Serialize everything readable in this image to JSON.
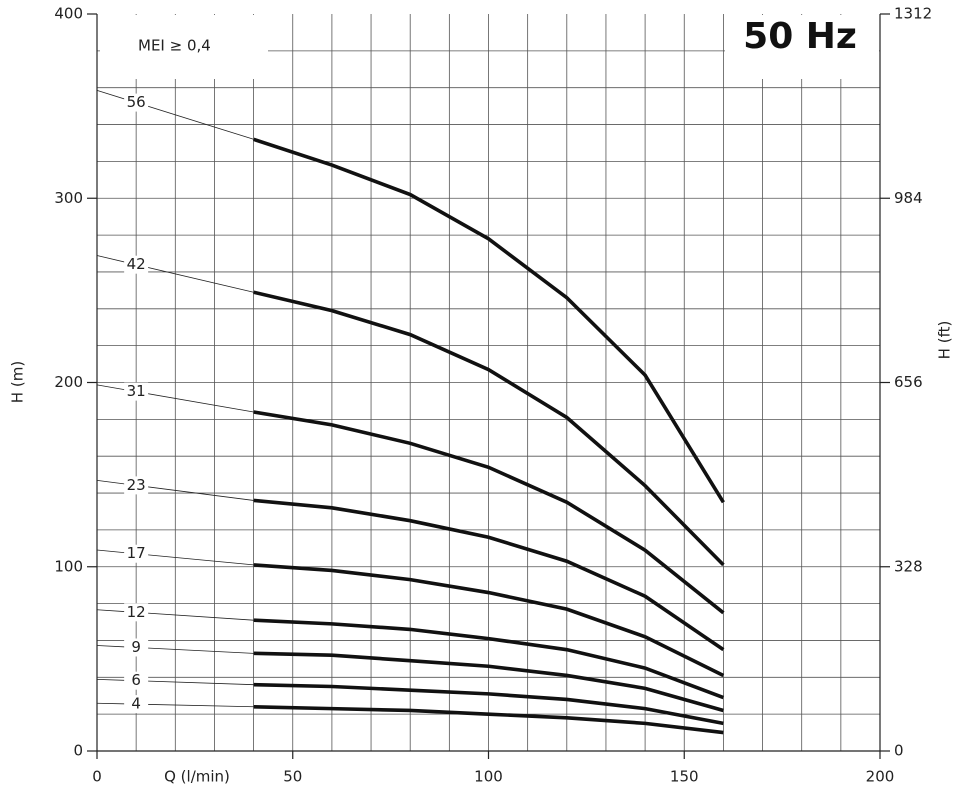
{
  "chart_data": {
    "type": "line",
    "annotation": "MEI ≥ 0,4",
    "frequency": "50 Hz",
    "x_label": "Q (l/min)",
    "y_label": "H (m)",
    "y2_label": "H (ft)",
    "xlim": [
      0,
      200
    ],
    "xticks": [
      0,
      50,
      100,
      150,
      200
    ],
    "ylim": [
      0,
      400
    ],
    "yticks": [
      0,
      100,
      200,
      300,
      400
    ],
    "y2lim": [
      0,
      1312
    ],
    "y2ticks": [
      0,
      328,
      656,
      984,
      1312
    ],
    "xgrid": [
      10,
      20,
      30,
      40,
      50,
      60,
      70,
      80,
      90,
      100,
      110,
      120,
      130,
      140,
      150,
      160,
      170,
      180,
      190
    ],
    "ygrid": [
      20,
      40,
      60,
      80,
      100,
      120,
      140,
      160,
      180,
      200,
      220,
      240,
      260,
      280,
      300,
      320,
      340,
      360,
      380
    ],
    "x": [
      40,
      60,
      80,
      100,
      120,
      140,
      160
    ],
    "series": [
      {
        "name": "56",
        "color": "#111111",
        "values": [
          332,
          318,
          302,
          278,
          246,
          204,
          135
        ]
      },
      {
        "name": "42",
        "color": "#111111",
        "values": [
          249,
          239,
          226,
          207,
          181,
          144,
          101
        ]
      },
      {
        "name": "31",
        "color": "#111111",
        "values": [
          184,
          177,
          167,
          154,
          135,
          109,
          75
        ]
      },
      {
        "name": "23",
        "color": "#111111",
        "values": [
          136,
          132,
          125,
          116,
          103,
          84,
          55
        ]
      },
      {
        "name": "17",
        "color": "#111111",
        "values": [
          101,
          98,
          93,
          86,
          77,
          62,
          41
        ]
      },
      {
        "name": "12",
        "color": "#111111",
        "values": [
          71,
          69,
          66,
          61,
          55,
          45,
          29
        ]
      },
      {
        "name": "9",
        "color": "#111111",
        "values": [
          53,
          52,
          49,
          46,
          41,
          34,
          22
        ]
      },
      {
        "name": "6",
        "color": "#111111",
        "values": [
          36,
          35,
          33,
          31,
          28,
          23,
          15
        ]
      },
      {
        "name": "4",
        "color": "#111111",
        "values": [
          24,
          23,
          22,
          20,
          18,
          15,
          10
        ]
      }
    ]
  }
}
